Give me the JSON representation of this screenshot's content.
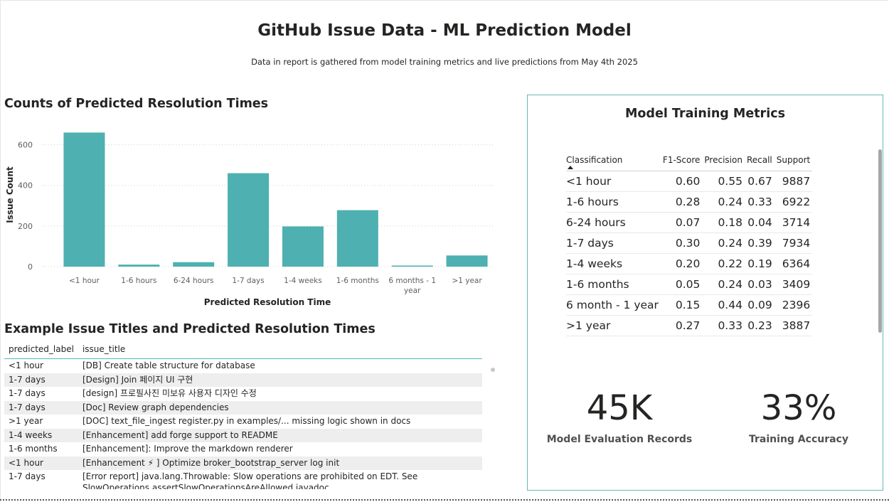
{
  "report": {
    "title": "GitHub Issue Data - ML Prediction Model",
    "subtitle": "Data in report is gathered from model training metrics and live predictions from May 4th 2025"
  },
  "bar_chart": {
    "title": "Counts of Predicted Resolution Times"
  },
  "chart_data": {
    "type": "bar",
    "title": "Counts of Predicted Resolution Times",
    "xlabel": "Predicted Resolution Time",
    "ylabel": "Issue Count",
    "categories": [
      "<1 hour",
      "1-6 hours",
      "6-24 hours",
      "1-7 days",
      "1-4 weeks",
      "1-6 months",
      "6 months - 1 year",
      ">1 year"
    ],
    "category_lines": [
      [
        "<1 hour"
      ],
      [
        "1-6 hours"
      ],
      [
        "6-24 hours"
      ],
      [
        "1-7 days"
      ],
      [
        "1-4 weeks"
      ],
      [
        "1-6 months"
      ],
      [
        "6 months - 1",
        "year"
      ],
      [
        ">1 year"
      ]
    ],
    "values": [
      660,
      10,
      22,
      460,
      198,
      278,
      5,
      55
    ],
    "yticks": [
      0,
      200,
      400,
      600
    ],
    "ylim": [
      0,
      700
    ],
    "grid": true,
    "color": "#4eb0b0"
  },
  "examples": {
    "title": "Example Issue Titles and Predicted Resolution Times",
    "columns": [
      "predicted_label",
      "issue_title"
    ],
    "rows": [
      [
        "<1 hour",
        "[DB] Create table structure for database"
      ],
      [
        "1-7 days",
        "[Design] Join 페이지 UI 구현"
      ],
      [
        "1-7 days",
        "[design] 프로필사진 미보유 사용자 디자인 수정"
      ],
      [
        "1-7 days",
        "[Doc] Review graph dependencies"
      ],
      [
        ">1 year",
        "[DOC] text_file_ingest register.py in examples/... missing logic shown in docs"
      ],
      [
        "1-4 weeks",
        "[Enhancement] add forge support to README"
      ],
      [
        "1-6 months",
        "[Enhancement]: Improve the markdown renderer"
      ],
      [
        "<1 hour",
        "[Enhancement ⚡ ] Optimize broker_bootstrap_server log init"
      ],
      [
        "1-7 days",
        "[Error report] java.lang.Throwable: Slow operations are prohibited on EDT. See"
      ]
    ],
    "row_continuation": "SlowOperations.assertSlowOperationsAreAllowed javadoc"
  },
  "metrics": {
    "title": "Model Training Metrics",
    "columns": [
      "Classification",
      "F1-Score",
      "Precision",
      "Recall",
      "Support"
    ],
    "rows": [
      [
        "<1 hour",
        "0.60",
        "0.55",
        "0.67",
        "9887"
      ],
      [
        "1-6 hours",
        "0.28",
        "0.24",
        "0.33",
        "6922"
      ],
      [
        "6-24 hours",
        "0.07",
        "0.18",
        "0.04",
        "3714"
      ],
      [
        "1-7 days",
        "0.30",
        "0.24",
        "0.39",
        "7934"
      ],
      [
        "1-4 weeks",
        "0.20",
        "0.22",
        "0.19",
        "6364"
      ],
      [
        "1-6 months",
        "0.05",
        "0.24",
        "0.03",
        "3409"
      ],
      [
        "6 month - 1 year",
        "0.15",
        "0.44",
        "0.09",
        "2396"
      ],
      [
        ">1 year",
        "0.27",
        "0.33",
        "0.23",
        "3887"
      ]
    ]
  },
  "kpis": {
    "records_value": "45K",
    "records_label": "Model Evaluation Records",
    "accuracy_value": "33%",
    "accuracy_label": "Training Accuracy"
  }
}
